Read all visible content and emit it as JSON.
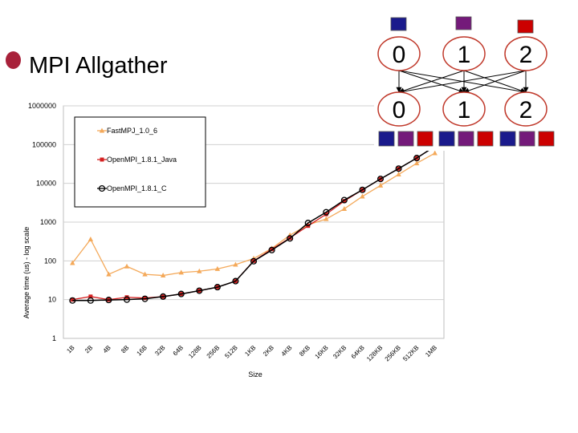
{
  "slide": {
    "title": "MPI Allgather",
    "bullet_color": "#a8213a"
  },
  "chart_data": {
    "type": "line",
    "title": "",
    "xlabel": "Size",
    "ylabel": "Average time (us) - log scale",
    "yscale": "log",
    "ylim": [
      1,
      1000000
    ],
    "yticks": [
      "1",
      "10",
      "100",
      "1000",
      "10000",
      "100000",
      "1000000"
    ],
    "grid": "horizontal",
    "legend_position": "top-left",
    "categories": [
      "1B",
      "2B",
      "4B",
      "8B",
      "16B",
      "32B",
      "64B",
      "128B",
      "256B",
      "512B",
      "1KB",
      "2KB",
      "4KB",
      "8KB",
      "16KB",
      "32KB",
      "64KB",
      "128KB",
      "256KB",
      "512KB",
      "1MB"
    ],
    "series": [
      {
        "name": "FastMPJ_1.0_6",
        "color": "#f4a95a",
        "marker": "triangle",
        "values": [
          88,
          360,
          45,
          72,
          45,
          42,
          50,
          54,
          62,
          80,
          115,
          210,
          460,
          850,
          1200,
          2200,
          4600,
          8800,
          17000,
          33000,
          60000
        ]
      },
      {
        "name": "OpenMPI_1.8.1_Java",
        "color": "#d42020",
        "marker": "square",
        "values": [
          10,
          12,
          10,
          11.5,
          11,
          12,
          14,
          17,
          21,
          30,
          100,
          200,
          390,
          800,
          1600,
          3500,
          6800,
          13000,
          24000,
          45000,
          90000
        ]
      },
      {
        "name": "OpenMPI_1.8.1_C",
        "color": "#000000",
        "marker": "circle",
        "values": [
          9.5,
          9.5,
          9.8,
          10,
          10.5,
          12,
          14,
          17,
          21,
          30,
          98,
          190,
          380,
          950,
          1800,
          3700,
          6800,
          13000,
          24000,
          45000,
          90000
        ]
      }
    ]
  },
  "diagram": {
    "top_nodes": [
      "0",
      "1",
      "2"
    ],
    "bottom_nodes": [
      "0",
      "1",
      "2"
    ],
    "node_colors": [
      "#1a1a8c",
      "#741a7a",
      "#cc0000"
    ],
    "node_border": "#c0392b"
  }
}
